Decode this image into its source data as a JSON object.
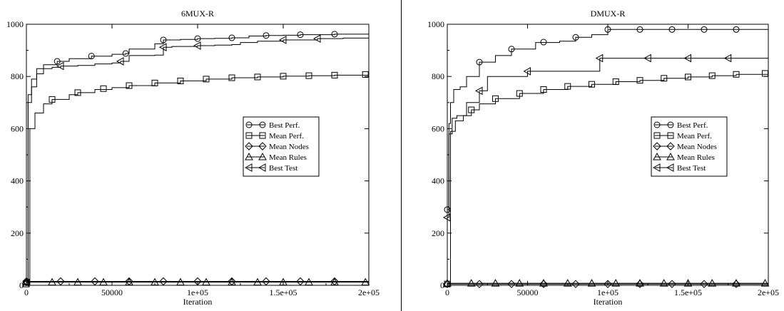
{
  "charts": [
    {
      "type": "line",
      "title": "6MUX-R",
      "xlabel": "Iteration",
      "ylabel": "",
      "xlim": [
        0,
        200000
      ],
      "ylim": [
        0,
        1000
      ],
      "x_ticks": [
        "0",
        "50000",
        "1e+05",
        "1.5e+05",
        "2e+05"
      ],
      "y_ticks": [
        "0",
        "200",
        "400",
        "600",
        "800",
        "1000"
      ],
      "legend_position": "right-middle",
      "grid": false,
      "series": [
        {
          "name": "Best Perf.",
          "marker": "circle",
          "x": [
            0,
            1000,
            3000,
            6000,
            10000,
            18000,
            25000,
            38000,
            50000,
            58000,
            60000,
            75000,
            80000,
            90000,
            100000,
            110000,
            120000,
            130000,
            140000,
            150000,
            160000,
            170000,
            180000,
            200000
          ],
          "y": [
            10,
            730,
            790,
            830,
            845,
            858,
            868,
            878,
            885,
            888,
            905,
            925,
            940,
            942,
            945,
            946,
            948,
            955,
            957,
            958,
            960,
            960,
            962,
            965
          ],
          "marker_x": [
            0,
            18000,
            38000,
            58000,
            80000,
            100000,
            120000,
            140000,
            160000,
            180000
          ]
        },
        {
          "name": "Mean Perf.",
          "marker": "square",
          "x": [
            0,
            2000,
            5000,
            10000,
            15000,
            25000,
            30000,
            40000,
            50000,
            60000,
            75000,
            90000,
            105000,
            120000,
            135000,
            150000,
            165000,
            180000,
            200000
          ],
          "y": [
            5,
            600,
            660,
            695,
            712,
            730,
            738,
            750,
            757,
            765,
            775,
            783,
            790,
            795,
            798,
            801,
            803,
            805,
            808
          ],
          "marker_x": [
            0,
            15000,
            30000,
            45000,
            60000,
            75000,
            90000,
            105000,
            120000,
            135000,
            150000,
            165000,
            180000,
            198000
          ]
        },
        {
          "name": "Mean Nodes",
          "marker": "diamond",
          "x": [
            0,
            20000,
            40000,
            60000,
            80000,
            100000,
            120000,
            140000,
            160000,
            180000,
            200000
          ],
          "y": [
            15,
            15,
            15,
            15,
            15,
            15,
            15,
            15,
            15,
            15,
            15
          ],
          "marker_x": [
            0,
            20000,
            40000,
            60000,
            80000,
            100000,
            120000,
            140000,
            160000,
            180000
          ]
        },
        {
          "name": "Mean Rules",
          "marker": "triangle-up",
          "x": [
            0,
            15000,
            30000,
            45000,
            60000,
            75000,
            90000,
            105000,
            120000,
            135000,
            150000,
            165000,
            180000,
            200000
          ],
          "y": [
            12,
            12,
            12,
            12,
            12,
            12,
            12,
            12,
            12,
            12,
            12,
            12,
            12,
            12
          ],
          "marker_x": [
            0,
            15000,
            30000,
            45000,
            60000,
            75000,
            90000,
            105000,
            120000,
            135000,
            150000,
            165000,
            180000,
            198000
          ]
        },
        {
          "name": "Best Test",
          "marker": "triangle-left",
          "x": [
            0,
            1000,
            3000,
            6000,
            10000,
            15000,
            20000,
            30000,
            40000,
            50000,
            55000,
            60000,
            75000,
            80000,
            85000,
            100000,
            110000,
            120000,
            125000,
            135000,
            150000,
            170000,
            185000,
            200000
          ],
          "y": [
            10,
            700,
            760,
            810,
            830,
            835,
            840,
            842,
            848,
            852,
            858,
            880,
            882,
            912,
            915,
            918,
            920,
            922,
            930,
            935,
            940,
            945,
            947,
            948
          ],
          "marker_x": [
            0,
            20000,
            55000,
            80000,
            100000,
            150000,
            170000
          ]
        }
      ]
    },
    {
      "type": "line",
      "title": "DMUX-R",
      "xlabel": "Iteration",
      "ylabel": "",
      "xlim": [
        0,
        200000
      ],
      "ylim": [
        0,
        1000
      ],
      "x_ticks": [
        "0",
        "50000",
        "1e+05",
        "1.5e+05",
        "2e+05"
      ],
      "y_ticks": [
        "0",
        "200",
        "400",
        "600",
        "800",
        "1000"
      ],
      "legend_position": "right-middle",
      "grid": false,
      "series": [
        {
          "name": "Best Perf.",
          "marker": "circle",
          "x": [
            0,
            1000,
            2000,
            4000,
            8000,
            12000,
            20000,
            30000,
            40000,
            55000,
            70000,
            80000,
            90000,
            100000,
            200000
          ],
          "y": [
            290,
            620,
            700,
            750,
            760,
            800,
            855,
            880,
            905,
            930,
            935,
            950,
            960,
            980,
            980
          ],
          "marker_x": [
            0,
            20000,
            40000,
            60000,
            80000,
            100000,
            120000,
            140000,
            160000,
            180000
          ]
        },
        {
          "name": "Mean Perf.",
          "marker": "square",
          "x": [
            0,
            2000,
            5000,
            10000,
            15000,
            20000,
            30000,
            45000,
            60000,
            75000,
            90000,
            105000,
            120000,
            135000,
            150000,
            165000,
            180000,
            200000
          ],
          "y": [
            5,
            590,
            630,
            650,
            672,
            695,
            715,
            735,
            750,
            762,
            770,
            780,
            785,
            793,
            798,
            803,
            808,
            812
          ],
          "marker_x": [
            0,
            15000,
            30000,
            45000,
            60000,
            75000,
            90000,
            105000,
            120000,
            135000,
            150000,
            165000,
            180000,
            198000
          ]
        },
        {
          "name": "Mean Nodes",
          "marker": "diamond",
          "x": [
            0,
            20000,
            40000,
            60000,
            80000,
            100000,
            120000,
            140000,
            160000,
            180000,
            200000
          ],
          "y": [
            5,
            5,
            5,
            5,
            5,
            5,
            5,
            5,
            5,
            5,
            5
          ],
          "marker_x": [
            0,
            20000,
            40000,
            60000,
            80000,
            100000,
            120000,
            140000,
            160000,
            180000
          ]
        },
        {
          "name": "Mean Rules",
          "marker": "triangle-up",
          "x": [
            0,
            15000,
            30000,
            45000,
            60000,
            75000,
            90000,
            105000,
            120000,
            135000,
            150000,
            165000,
            180000,
            200000
          ],
          "y": [
            8,
            8,
            8,
            8,
            8,
            8,
            8,
            8,
            8,
            8,
            8,
            8,
            8,
            8
          ],
          "marker_x": [
            0,
            15000,
            30000,
            45000,
            60000,
            75000,
            90000,
            105000,
            120000,
            135000,
            150000,
            165000,
            180000,
            198000
          ]
        },
        {
          "name": "Best Test",
          "marker": "triangle-left",
          "x": [
            0,
            1000,
            3000,
            6000,
            12000,
            20000,
            25000,
            35000,
            50000,
            75000,
            95000,
            200000
          ],
          "y": [
            260,
            580,
            640,
            650,
            700,
            745,
            800,
            800,
            820,
            820,
            870,
            870
          ],
          "marker_x": [
            0,
            20000,
            50000,
            95000,
            125000,
            150000,
            175000
          ]
        }
      ]
    }
  ]
}
